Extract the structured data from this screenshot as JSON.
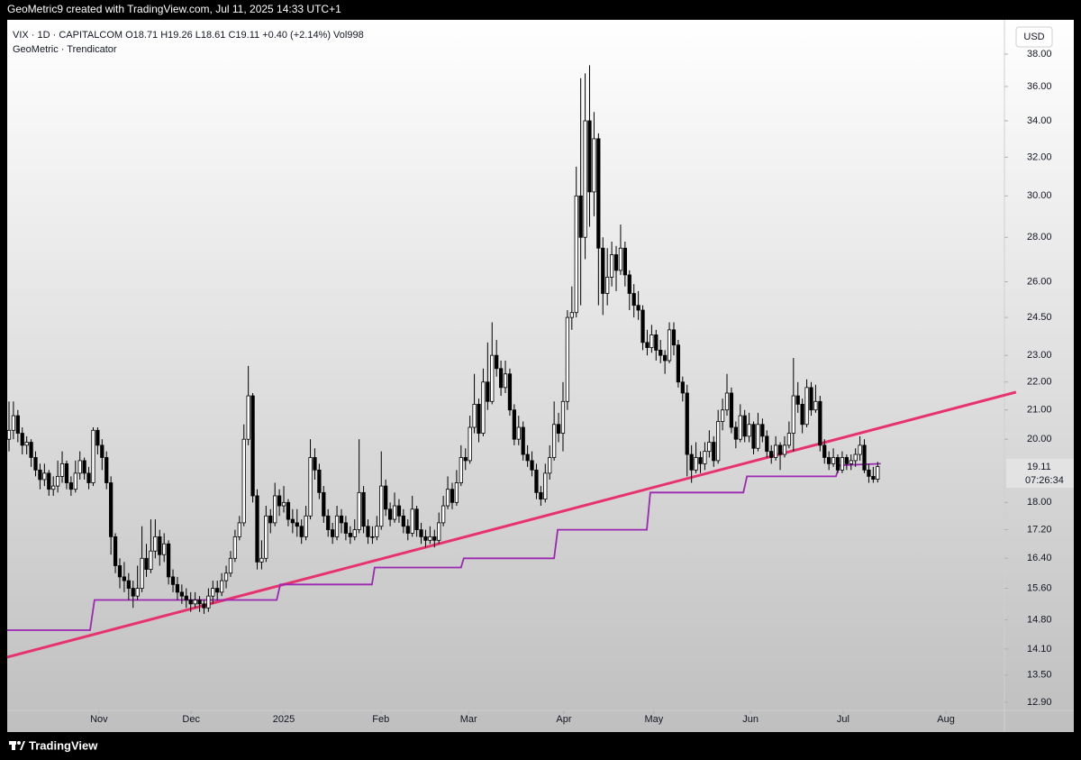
{
  "header": "GeoMetric9 created with TradingView.com, Jul 11, 2025 14:33 UTC+1",
  "footer": "TradingView",
  "chart_data": {
    "type": "candlestick",
    "symbol_line": "VIX · 1D · CAPITALCOM  O18.71 H19.26 L18.61 C19.11 +0.40 (+2.14%) Vol998",
    "indicator": "GeoMetric · Trendicator",
    "currency": "USD",
    "countdown": "07:26:34",
    "log_scale": true,
    "up_color": "#ffffff",
    "down_color": "#000000",
    "wick_color": "#000000",
    "xlim": [
      -2.03,
      224.6
    ],
    "ylim": [
      12.69,
      39.75
    ],
    "xticks": [
      {
        "value": 20.3,
        "label": "Nov"
      },
      {
        "value": 41.1,
        "label": "Dec"
      },
      {
        "value": 62.0,
        "label": "2025"
      },
      {
        "value": 83.9,
        "label": "Feb"
      },
      {
        "value": 103.7,
        "label": "Mar"
      },
      {
        "value": 125.2,
        "label": "Apr"
      },
      {
        "value": 145.5,
        "label": "May"
      },
      {
        "value": 167.3,
        "label": "Jun"
      },
      {
        "value": 188.2,
        "label": "Jul"
      },
      {
        "value": 211.4,
        "label": "Aug"
      }
    ],
    "yticks": [
      {
        "value": 38,
        "label": "38.00"
      },
      {
        "value": 36,
        "label": "36.00"
      },
      {
        "value": 34,
        "label": "34.00"
      },
      {
        "value": 32,
        "label": "32.00"
      },
      {
        "value": 30,
        "label": "30.00"
      },
      {
        "value": 28,
        "label": "28.00"
      },
      {
        "value": 26,
        "label": "26.00"
      },
      {
        "value": 24.5,
        "label": "24.50"
      },
      {
        "value": 23,
        "label": "23.00"
      },
      {
        "value": 22,
        "label": "22.00"
      },
      {
        "value": 21,
        "label": "21.00"
      },
      {
        "value": 20,
        "label": "20.00"
      },
      {
        "value": 18,
        "label": "18.00"
      },
      {
        "value": 17.2,
        "label": "17.20"
      },
      {
        "value": 16.4,
        "label": "16.40"
      },
      {
        "value": 15.6,
        "label": "15.60"
      },
      {
        "value": 14.8,
        "label": "14.80"
      },
      {
        "value": 14.1,
        "label": "14.10"
      },
      {
        "value": 13.5,
        "label": "13.50"
      },
      {
        "value": 12.9,
        "label": "12.90"
      }
    ],
    "lines": [
      {
        "color": "#e8326e",
        "x": [
          -0.4,
          227.2
        ],
        "values": [
          13.91,
          21.63
        ]
      },
      {
        "color": "#9c27b0",
        "x": [
          -0.4,
          18.3,
          19.3,
          60.4,
          61.2,
          81.9,
          82.5,
          102.0,
          102.6,
          123.0,
          123.8,
          143.9,
          144.7,
          165.7,
          166.5,
          186.6,
          187.4,
          196.7
        ],
        "values": [
          14.55,
          14.55,
          15.3,
          15.3,
          15.7,
          15.7,
          16.15,
          16.15,
          16.4,
          16.4,
          17.2,
          17.2,
          18.3,
          18.3,
          18.8,
          18.8,
          19.15,
          19.2
        ]
      }
    ],
    "candles": [
      [
        20.0,
        21.3,
        19.6,
        20.3
      ],
      [
        20.3,
        21.3,
        20.0,
        20.8
      ],
      [
        20.8,
        21.0,
        19.9,
        20.2
      ],
      [
        20.2,
        20.4,
        19.5,
        19.8
      ],
      [
        19.8,
        20.1,
        19.5,
        19.9
      ],
      [
        19.9,
        20.0,
        19.1,
        19.4
      ],
      [
        19.4,
        19.6,
        18.8,
        19.0
      ],
      [
        19.0,
        19.2,
        18.4,
        18.7
      ],
      [
        18.7,
        19.2,
        18.5,
        18.9
      ],
      [
        18.9,
        19.0,
        18.2,
        18.4
      ],
      [
        18.4,
        18.8,
        18.2,
        18.5
      ],
      [
        18.5,
        19.3,
        18.3,
        18.8
      ],
      [
        18.8,
        19.6,
        18.6,
        19.2
      ],
      [
        19.2,
        19.3,
        18.4,
        18.6
      ],
      [
        18.6,
        18.8,
        18.2,
        18.4
      ],
      [
        18.4,
        19.3,
        18.3,
        18.9
      ],
      [
        18.9,
        19.6,
        18.7,
        19.3
      ],
      [
        19.3,
        19.4,
        18.7,
        18.9
      ],
      [
        18.9,
        19.1,
        18.4,
        18.6
      ],
      [
        18.6,
        20.4,
        18.5,
        20.3
      ],
      [
        20.3,
        20.4,
        19.5,
        19.8
      ],
      [
        19.8,
        20.0,
        19.0,
        19.4
      ],
      [
        19.4,
        19.6,
        18.4,
        18.6
      ],
      [
        18.6,
        18.8,
        16.5,
        17.0
      ],
      [
        17.0,
        17.1,
        16.0,
        16.2
      ],
      [
        16.2,
        16.4,
        15.6,
        15.9
      ],
      [
        15.9,
        16.3,
        15.5,
        15.8
      ],
      [
        15.8,
        16.0,
        15.3,
        15.6
      ],
      [
        15.6,
        15.8,
        15.1,
        15.4
      ],
      [
        15.4,
        16.2,
        15.3,
        15.6
      ],
      [
        15.6,
        17.3,
        15.5,
        16.4
      ],
      [
        16.4,
        16.8,
        15.9,
        16.1
      ],
      [
        16.1,
        17.5,
        16.0,
        16.6
      ],
      [
        16.6,
        17.5,
        16.4,
        17.0
      ],
      [
        17.0,
        17.2,
        16.2,
        16.5
      ],
      [
        16.5,
        17.1,
        16.3,
        16.8
      ],
      [
        16.8,
        16.9,
        15.7,
        15.9
      ],
      [
        15.9,
        16.1,
        15.5,
        15.7
      ],
      [
        15.7,
        15.9,
        15.3,
        15.5
      ],
      [
        15.5,
        15.7,
        15.2,
        15.4
      ],
      [
        15.4,
        15.6,
        15.1,
        15.3
      ],
      [
        15.3,
        15.5,
        15.0,
        15.2
      ],
      [
        15.2,
        15.5,
        15.1,
        15.3
      ],
      [
        15.3,
        15.4,
        15.0,
        15.2
      ],
      [
        15.2,
        15.3,
        14.95,
        15.1
      ],
      [
        15.1,
        15.6,
        15.0,
        15.4
      ],
      [
        15.4,
        15.8,
        15.2,
        15.6
      ],
      [
        15.6,
        15.8,
        15.3,
        15.5
      ],
      [
        15.5,
        16.0,
        15.4,
        15.8
      ],
      [
        15.8,
        16.2,
        15.6,
        16.0
      ],
      [
        16.0,
        16.6,
        15.9,
        16.4
      ],
      [
        16.4,
        17.2,
        16.3,
        17.0
      ],
      [
        17.0,
        17.6,
        16.9,
        17.4
      ],
      [
        17.4,
        20.5,
        17.3,
        20.0
      ],
      [
        20.0,
        22.6,
        19.8,
        21.5
      ],
      [
        21.5,
        21.6,
        18.0,
        18.2
      ],
      [
        18.2,
        18.4,
        16.1,
        16.3
      ],
      [
        16.3,
        16.9,
        16.1,
        16.4
      ],
      [
        16.4,
        17.9,
        16.3,
        17.6
      ],
      [
        17.6,
        17.8,
        17.1,
        17.4
      ],
      [
        17.4,
        18.6,
        17.3,
        18.2
      ],
      [
        18.2,
        18.4,
        17.6,
        17.9
      ],
      [
        17.9,
        18.5,
        17.7,
        18.0
      ],
      [
        18.0,
        18.1,
        17.3,
        17.5
      ],
      [
        17.5,
        17.8,
        17.1,
        17.4
      ],
      [
        17.4,
        17.8,
        17.0,
        17.3
      ],
      [
        17.3,
        17.5,
        16.8,
        17.0
      ],
      [
        17.0,
        17.9,
        16.9,
        17.6
      ],
      [
        17.6,
        20.0,
        17.5,
        19.4
      ],
      [
        19.4,
        19.7,
        18.7,
        19.0
      ],
      [
        19.0,
        19.2,
        18.1,
        18.3
      ],
      [
        18.3,
        18.5,
        17.4,
        17.6
      ],
      [
        17.6,
        17.8,
        17.0,
        17.2
      ],
      [
        17.2,
        17.4,
        16.8,
        17.0
      ],
      [
        17.0,
        17.9,
        16.9,
        17.6
      ],
      [
        17.6,
        17.8,
        17.1,
        17.4
      ],
      [
        17.4,
        17.6,
        16.9,
        17.1
      ],
      [
        17.1,
        17.3,
        16.8,
        17.0
      ],
      [
        17.0,
        17.5,
        16.9,
        17.2
      ],
      [
        17.2,
        20.0,
        17.1,
        18.3
      ],
      [
        18.3,
        18.5,
        17.1,
        17.3
      ],
      [
        17.3,
        17.5,
        16.8,
        17.0
      ],
      [
        17.0,
        17.3,
        16.8,
        17.0
      ],
      [
        17.0,
        17.6,
        16.9,
        17.3
      ],
      [
        17.3,
        19.6,
        17.2,
        18.5
      ],
      [
        18.5,
        18.7,
        17.6,
        17.8
      ],
      [
        17.8,
        18.0,
        17.3,
        17.5
      ],
      [
        17.5,
        18.3,
        17.4,
        17.9
      ],
      [
        17.9,
        18.1,
        17.4,
        17.6
      ],
      [
        17.6,
        17.8,
        17.1,
        17.3
      ],
      [
        17.3,
        17.5,
        16.9,
        17.1
      ],
      [
        17.1,
        18.2,
        17.0,
        17.8
      ],
      [
        17.8,
        17.9,
        17.0,
        17.2
      ],
      [
        17.2,
        17.4,
        16.8,
        17.0
      ],
      [
        17.0,
        17.2,
        16.7,
        16.9
      ],
      [
        16.9,
        17.3,
        16.8,
        17.0
      ],
      [
        17.0,
        17.2,
        16.7,
        16.9
      ],
      [
        16.9,
        17.7,
        16.8,
        17.4
      ],
      [
        17.4,
        18.2,
        17.3,
        17.9
      ],
      [
        17.9,
        18.8,
        17.8,
        18.4
      ],
      [
        18.4,
        18.6,
        17.8,
        18.0
      ],
      [
        18.0,
        19.0,
        17.9,
        18.6
      ],
      [
        18.6,
        19.8,
        18.5,
        19.4
      ],
      [
        19.4,
        19.7,
        19.0,
        19.3
      ],
      [
        19.3,
        20.8,
        19.2,
        20.4
      ],
      [
        20.4,
        22.3,
        20.2,
        21.2
      ],
      [
        21.2,
        21.4,
        19.9,
        20.2
      ],
      [
        20.2,
        22.5,
        20.1,
        22.0
      ],
      [
        22.0,
        23.5,
        21.0,
        21.3
      ],
      [
        21.3,
        24.3,
        21.2,
        23.0
      ],
      [
        23.0,
        23.6,
        22.2,
        22.5
      ],
      [
        22.5,
        22.8,
        21.5,
        21.8
      ],
      [
        21.8,
        22.8,
        21.6,
        22.3
      ],
      [
        22.3,
        22.5,
        20.8,
        21.0
      ],
      [
        21.0,
        21.2,
        19.8,
        20.0
      ],
      [
        20.0,
        20.8,
        19.8,
        20.4
      ],
      [
        20.4,
        20.6,
        19.3,
        19.5
      ],
      [
        19.5,
        19.8,
        19.1,
        19.3
      ],
      [
        19.3,
        19.6,
        18.8,
        19.0
      ],
      [
        19.0,
        19.2,
        18.1,
        18.3
      ],
      [
        18.3,
        18.5,
        17.9,
        18.1
      ],
      [
        18.1,
        19.2,
        18.0,
        18.9
      ],
      [
        18.9,
        19.8,
        18.7,
        19.4
      ],
      [
        19.4,
        21.3,
        19.3,
        20.5
      ],
      [
        20.5,
        20.9,
        19.9,
        20.2
      ],
      [
        20.2,
        22.0,
        19.6,
        21.3
      ],
      [
        21.3,
        24.8,
        21.0,
        24.5
      ],
      [
        24.5,
        25.8,
        24.0,
        24.7
      ],
      [
        24.7,
        31.5,
        24.5,
        30.0
      ],
      [
        30.0,
        36.5,
        25.0,
        28.0
      ],
      [
        28.0,
        36.8,
        27.0,
        34.0
      ],
      [
        34.0,
        37.3,
        28.5,
        30.2
      ],
      [
        30.2,
        34.5,
        29.0,
        33.0
      ],
      [
        33.0,
        33.3,
        25.0,
        27.5
      ],
      [
        27.5,
        28.0,
        24.6,
        25.5
      ],
      [
        25.5,
        27.5,
        25.0,
        26.2
      ],
      [
        26.2,
        27.8,
        25.8,
        27.2
      ],
      [
        27.2,
        27.6,
        25.6,
        26.5
      ],
      [
        26.5,
        28.6,
        26.3,
        27.5
      ],
      [
        27.5,
        27.8,
        25.8,
        26.3
      ],
      [
        26.3,
        26.5,
        24.8,
        25.5
      ],
      [
        25.5,
        25.9,
        24.5,
        25.0
      ],
      [
        25.0,
        25.6,
        24.4,
        24.8
      ],
      [
        24.8,
        25.0,
        23.2,
        23.5
      ],
      [
        23.5,
        24.0,
        23.0,
        23.3
      ],
      [
        23.3,
        24.2,
        23.1,
        23.8
      ],
      [
        23.8,
        24.0,
        22.8,
        23.2
      ],
      [
        23.2,
        23.6,
        22.7,
        23.0
      ],
      [
        23.0,
        23.2,
        22.3,
        22.8
      ],
      [
        22.8,
        24.3,
        22.7,
        24.0
      ],
      [
        24.0,
        24.3,
        23.0,
        23.4
      ],
      [
        23.4,
        23.6,
        21.8,
        22.0
      ],
      [
        22.0,
        22.2,
        21.3,
        21.6
      ],
      [
        21.6,
        21.9,
        18.8,
        19.5
      ],
      [
        19.5,
        19.8,
        18.6,
        19.0
      ],
      [
        19.0,
        19.9,
        18.9,
        19.4
      ],
      [
        19.4,
        19.6,
        18.9,
        19.2
      ],
      [
        19.2,
        19.9,
        19.0,
        19.6
      ],
      [
        19.6,
        20.3,
        19.4,
        19.9
      ],
      [
        19.9,
        20.1,
        19.1,
        19.3
      ],
      [
        19.3,
        21.0,
        19.2,
        20.6
      ],
      [
        20.6,
        21.4,
        20.3,
        21.0
      ],
      [
        21.0,
        22.3,
        20.8,
        21.6
      ],
      [
        21.6,
        21.8,
        20.2,
        20.4
      ],
      [
        20.4,
        20.6,
        19.7,
        20.0
      ],
      [
        20.0,
        21.2,
        19.9,
        20.8
      ],
      [
        20.8,
        21.0,
        19.9,
        20.1
      ],
      [
        20.1,
        20.9,
        19.9,
        20.5
      ],
      [
        20.5,
        20.6,
        19.5,
        19.7
      ],
      [
        19.7,
        20.9,
        19.6,
        20.5
      ],
      [
        20.5,
        20.7,
        19.9,
        20.1
      ],
      [
        20.1,
        20.3,
        19.4,
        19.6
      ],
      [
        19.6,
        19.8,
        19.2,
        19.4
      ],
      [
        19.4,
        20.1,
        19.3,
        19.8
      ],
      [
        19.8,
        19.9,
        19.0,
        19.5
      ],
      [
        19.5,
        20.1,
        19.4,
        19.8
      ],
      [
        19.8,
        20.6,
        19.7,
        20.2
      ],
      [
        20.2,
        22.9,
        19.6,
        21.5
      ],
      [
        21.5,
        22.0,
        20.9,
        21.2
      ],
      [
        21.2,
        21.4,
        20.2,
        20.5
      ],
      [
        20.5,
        22.1,
        20.4,
        21.8
      ],
      [
        21.8,
        22.0,
        20.8,
        21.0
      ],
      [
        21.0,
        21.9,
        20.9,
        21.3
      ],
      [
        21.3,
        21.5,
        19.6,
        19.8
      ],
      [
        19.8,
        20.0,
        19.2,
        19.4
      ],
      [
        19.4,
        19.6,
        19.0,
        19.2
      ],
      [
        19.2,
        19.7,
        19.1,
        19.4
      ],
      [
        19.4,
        19.5,
        18.9,
        19.0
      ],
      [
        19.0,
        19.6,
        18.9,
        19.4
      ],
      [
        19.4,
        19.5,
        19.0,
        19.2
      ],
      [
        19.2,
        19.5,
        19.0,
        19.3
      ],
      [
        19.3,
        19.7,
        19.1,
        19.5
      ],
      [
        19.5,
        20.1,
        19.3,
        19.8
      ],
      [
        19.8,
        20.0,
        18.9,
        19.0
      ],
      [
        19.0,
        19.2,
        18.6,
        18.8
      ],
      [
        18.8,
        19.1,
        18.6,
        18.71
      ],
      [
        18.71,
        19.26,
        18.61,
        19.11
      ]
    ]
  }
}
